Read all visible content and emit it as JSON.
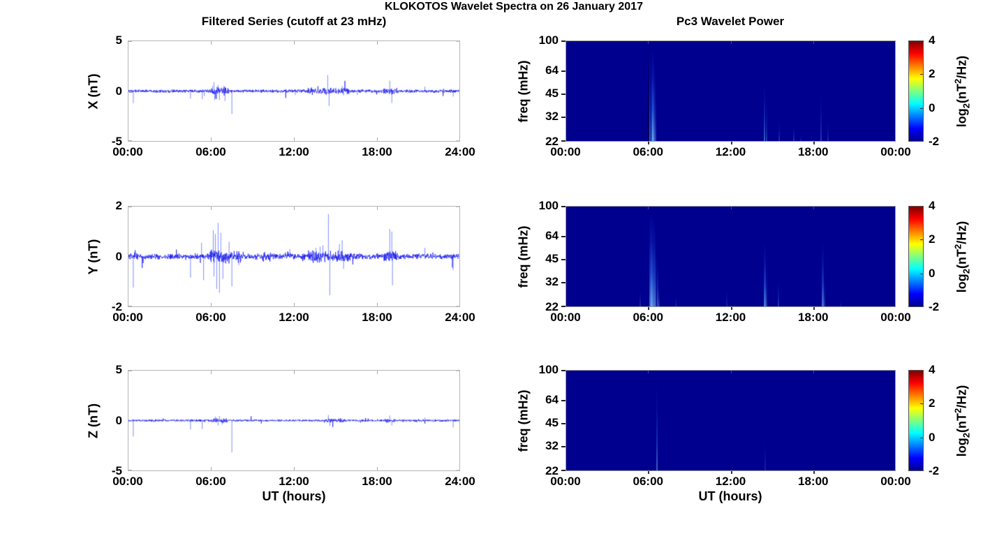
{
  "figure": {
    "title": "KLOKOTOS Wavelet Spectra on 26 January 2017",
    "left_subtitle": "Filtered Series (cutoff at 23 mHz)",
    "right_subtitle": "Pc3 Wavelet Power",
    "xlabel": "UT (hours)",
    "colors": {
      "series_line": "#0000EE",
      "spike_line": "#3344FF",
      "spectrogram_bg": "#00008F",
      "frame": "#B5B5B5",
      "text": "#000000",
      "jet_stops": [
        "#00008F",
        "#0000FF",
        "#00FFFF",
        "#FFFF00",
        "#FF0000",
        "#800000"
      ],
      "jet_positions": [
        0,
        0.125,
        0.375,
        0.625,
        0.875,
        1
      ]
    }
  },
  "chart_data": [
    {
      "id": "x-series",
      "type": "line",
      "ylabel": "X (nT)",
      "ylim": [
        -5,
        5
      ],
      "yticks": [
        5,
        0,
        -5
      ],
      "xlim_hours": [
        0,
        24
      ],
      "xtick_hours": [
        0,
        6,
        12,
        18,
        24
      ],
      "xtick_labels": [
        "00:00",
        "06:00",
        "12:00",
        "18:00",
        "24:00"
      ],
      "noise_amp": 0.1,
      "noise_bursts": [
        {
          "t0": 6.0,
          "t1": 7.3,
          "amp": 0.16
        },
        {
          "t0": 13.0,
          "t1": 16.0,
          "amp": 0.1
        },
        {
          "t0": 18.5,
          "t1": 19.5,
          "amp": 0.1
        }
      ],
      "spikes": [
        {
          "t": 0.35,
          "v": -1.2
        },
        {
          "t": 4.5,
          "v": -0.75
        },
        {
          "t": 5.35,
          "v": -0.8
        },
        {
          "t": 5.5,
          "v": -0.5
        },
        {
          "t": 6.1,
          "v": 0.5
        },
        {
          "t": 6.2,
          "v": 0.9
        },
        {
          "t": 6.25,
          "v": -0.9
        },
        {
          "t": 6.4,
          "v": -0.8
        },
        {
          "t": 6.5,
          "v": 0.6
        },
        {
          "t": 6.6,
          "v": -0.9
        },
        {
          "t": 6.9,
          "v": 0.5
        },
        {
          "t": 7.0,
          "v": -1.0
        },
        {
          "t": 7.5,
          "v": -2.3
        },
        {
          "t": 12.1,
          "v": -0.4
        },
        {
          "t": 14.45,
          "v": 1.6
        },
        {
          "t": 14.55,
          "v": -1.5
        },
        {
          "t": 15.5,
          "v": 0.5
        },
        {
          "t": 15.6,
          "v": -0.45
        },
        {
          "t": 16.6,
          "v": -0.4
        },
        {
          "t": 18.95,
          "v": 1.05
        },
        {
          "t": 19.1,
          "v": -1.2
        },
        {
          "t": 21.5,
          "v": 0.45
        },
        {
          "t": 23.55,
          "v": -0.55
        }
      ]
    },
    {
      "id": "y-series",
      "type": "line",
      "ylabel": "Y (nT)",
      "ylim": [
        -2,
        2
      ],
      "yticks": [
        2,
        0,
        -2
      ],
      "xlim_hours": [
        0,
        24
      ],
      "xtick_hours": [
        0,
        6,
        12,
        18,
        24
      ],
      "xtick_labels": [
        "00:00",
        "06:00",
        "12:00",
        "18:00",
        "24:00"
      ],
      "noise_amp": 0.07,
      "noise_bursts": [
        {
          "t0": 5.9,
          "t1": 8.2,
          "amp": 0.09
        },
        {
          "t0": 9.7,
          "t1": 10.3,
          "amp": 0.05
        },
        {
          "t0": 11.3,
          "t1": 11.8,
          "amp": 0.04
        },
        {
          "t0": 13.0,
          "t1": 16.2,
          "amp": 0.07
        },
        {
          "t0": 18.5,
          "t1": 19.6,
          "amp": 0.06
        }
      ],
      "spikes": [
        {
          "t": 0.35,
          "v": -1.25
        },
        {
          "t": 4.5,
          "v": -0.85
        },
        {
          "t": 5.3,
          "v": 0.55
        },
        {
          "t": 5.45,
          "v": -0.95
        },
        {
          "t": 6.15,
          "v": 1.05
        },
        {
          "t": 6.2,
          "v": -0.8
        },
        {
          "t": 6.3,
          "v": 0.9
        },
        {
          "t": 6.4,
          "v": -1.3
        },
        {
          "t": 6.5,
          "v": 1.35
        },
        {
          "t": 6.6,
          "v": -1.45
        },
        {
          "t": 6.7,
          "v": 0.95
        },
        {
          "t": 6.85,
          "v": -0.9
        },
        {
          "t": 7.3,
          "v": 0.6
        },
        {
          "t": 7.5,
          "v": -1.2
        },
        {
          "t": 8.0,
          "v": -0.35
        },
        {
          "t": 11.7,
          "v": 0.3
        },
        {
          "t": 13.6,
          "v": 0.35
        },
        {
          "t": 13.9,
          "v": 0.4
        },
        {
          "t": 14.1,
          "v": 0.45
        },
        {
          "t": 14.5,
          "v": 1.7
        },
        {
          "t": 14.6,
          "v": -1.55
        },
        {
          "t": 15.3,
          "v": 0.5
        },
        {
          "t": 15.5,
          "v": 0.65
        },
        {
          "t": 15.6,
          "v": -0.5
        },
        {
          "t": 18.95,
          "v": 1.1
        },
        {
          "t": 19.1,
          "v": 1.0
        },
        {
          "t": 19.15,
          "v": -1.15
        },
        {
          "t": 21.5,
          "v": 0.35
        },
        {
          "t": 23.55,
          "v": -0.55
        }
      ]
    },
    {
      "id": "z-series",
      "type": "line",
      "ylabel": "Z (nT)",
      "ylim": [
        -5,
        5
      ],
      "yticks": [
        5,
        0,
        -5
      ],
      "xlim_hours": [
        0,
        24
      ],
      "xtick_hours": [
        0,
        6,
        12,
        18,
        24
      ],
      "xtick_labels": [
        "00:00",
        "06:00",
        "12:00",
        "18:00",
        "24:00"
      ],
      "noise_amp": 0.07,
      "noise_bursts": [
        {
          "t0": 6.0,
          "t1": 7.2,
          "amp": 0.08
        },
        {
          "t0": 14.2,
          "t1": 15.8,
          "amp": 0.05
        },
        {
          "t0": 18.6,
          "t1": 19.4,
          "amp": 0.05
        }
      ],
      "spikes": [
        {
          "t": 0.35,
          "v": -1.6
        },
        {
          "t": 4.5,
          "v": -0.9
        },
        {
          "t": 5.35,
          "v": -0.85
        },
        {
          "t": 6.3,
          "v": 0.4
        },
        {
          "t": 6.5,
          "v": -0.5
        },
        {
          "t": 6.6,
          "v": 0.45
        },
        {
          "t": 6.8,
          "v": -0.4
        },
        {
          "t": 7.5,
          "v": -3.2
        },
        {
          "t": 14.5,
          "v": 0.55
        },
        {
          "t": 14.6,
          "v": -0.55
        },
        {
          "t": 18.95,
          "v": 0.5
        },
        {
          "t": 19.1,
          "v": -0.5
        },
        {
          "t": 21.5,
          "v": 0.3
        },
        {
          "t": 23.55,
          "v": -0.7
        }
      ]
    },
    {
      "id": "x-wavelet",
      "type": "heatmap",
      "ylabel": "freq (mHz)",
      "yticks": [
        100,
        64,
        45,
        32,
        22
      ],
      "ylim_mhz": [
        22,
        100
      ],
      "yscale": "log2",
      "xlim_hours": [
        0,
        24
      ],
      "xtick_hours": [
        0,
        6,
        12,
        18,
        24
      ],
      "xtick_labels": [
        "00:00",
        "06:00",
        "12:00",
        "18:00",
        "00:00"
      ],
      "background_value": -2,
      "colorbar": {
        "lim": [
          -2,
          4
        ],
        "ticks": [
          4,
          2,
          0,
          -2
        ],
        "label_parts": {
          "base": "log",
          "sub": "2",
          "mid": "(nT",
          "sup": "2",
          "tail": "/Hz)"
        },
        "label_plain": "log2(nT^2/Hz)"
      },
      "streaks": [
        {
          "t": 6.02,
          "fmax": 95,
          "intensity": 0.35,
          "dark": true
        },
        {
          "t": 6.1,
          "fmax": 85,
          "intensity": 0.5
        },
        {
          "t": 6.25,
          "fmax": 88,
          "intensity": 0.8
        },
        {
          "t": 6.38,
          "fmax": 78,
          "intensity": 0.6
        },
        {
          "t": 6.5,
          "fmax": 58,
          "intensity": 0.35
        },
        {
          "t": 14.45,
          "fmax": 52,
          "intensity": 0.5
        },
        {
          "t": 14.6,
          "fmax": 38,
          "intensity": 0.3
        },
        {
          "t": 15.55,
          "fmax": 30,
          "intensity": 0.25
        },
        {
          "t": 16.6,
          "fmax": 28,
          "intensity": 0.25
        },
        {
          "t": 17.1,
          "fmax": 24,
          "intensity": 0.15
        },
        {
          "t": 18.6,
          "fmax": 45,
          "intensity": 0.3
        },
        {
          "t": 19.1,
          "fmax": 30,
          "intensity": 0.2
        }
      ]
    },
    {
      "id": "y-wavelet",
      "type": "heatmap",
      "ylabel": "freq (mHz)",
      "yticks": [
        100,
        64,
        45,
        32,
        22
      ],
      "ylim_mhz": [
        22,
        100
      ],
      "yscale": "log2",
      "xlim_hours": [
        0,
        24
      ],
      "xtick_hours": [
        0,
        6,
        12,
        18,
        24
      ],
      "xtick_labels": [
        "00:00",
        "06:00",
        "12:00",
        "18:00",
        "00:00"
      ],
      "background_value": -2,
      "colorbar": {
        "lim": [
          -2,
          4
        ],
        "ticks": [
          4,
          2,
          0,
          -2
        ],
        "label_parts": {
          "base": "log",
          "sub": "2",
          "mid": "(nT",
          "sup": "2",
          "tail": "/Hz)"
        },
        "label_plain": "log2(nT^2/Hz)"
      },
      "streaks": [
        {
          "t": 5.4,
          "fmax": 28,
          "intensity": 0.25
        },
        {
          "t": 6.1,
          "fmax": 88,
          "intensity": 0.6
        },
        {
          "t": 6.2,
          "fmax": 90,
          "intensity": 0.85
        },
        {
          "t": 6.35,
          "fmax": 85,
          "intensity": 0.7
        },
        {
          "t": 6.5,
          "fmax": 70,
          "intensity": 0.5
        },
        {
          "t": 6.65,
          "fmax": 45,
          "intensity": 0.45
        },
        {
          "t": 6.8,
          "fmax": 30,
          "intensity": 0.3
        },
        {
          "t": 8.0,
          "fmax": 26,
          "intensity": 0.2
        },
        {
          "t": 11.7,
          "fmax": 28,
          "intensity": 0.2
        },
        {
          "t": 14.45,
          "fmax": 58,
          "intensity": 0.65
        },
        {
          "t": 14.6,
          "fmax": 40,
          "intensity": 0.35
        },
        {
          "t": 15.5,
          "fmax": 33,
          "intensity": 0.3
        },
        {
          "t": 18.7,
          "fmax": 57,
          "intensity": 0.6
        },
        {
          "t": 18.85,
          "fmax": 35,
          "intensity": 0.3
        },
        {
          "t": 20.0,
          "fmax": 24,
          "intensity": 0.15
        }
      ]
    },
    {
      "id": "z-wavelet",
      "type": "heatmap",
      "ylabel": "freq (mHz)",
      "yticks": [
        100,
        64,
        45,
        32,
        22
      ],
      "ylim_mhz": [
        22,
        100
      ],
      "yscale": "log2",
      "xlim_hours": [
        0,
        24
      ],
      "xtick_hours": [
        0,
        6,
        12,
        18,
        24
      ],
      "xtick_labels": [
        "00:00",
        "06:00",
        "12:00",
        "18:00",
        "00:00"
      ],
      "background_value": -2,
      "colorbar": {
        "lim": [
          -2,
          4
        ],
        "ticks": [
          4,
          2,
          0,
          -2
        ],
        "label_parts": {
          "base": "log",
          "sub": "2",
          "mid": "(nT",
          "sup": "2",
          "tail": "/Hz)"
        },
        "label_plain": "log2(nT^2/Hz)"
      },
      "streaks": [
        {
          "t": 6.6,
          "fmax": 78,
          "intensity": 0.5
        },
        {
          "t": 14.5,
          "fmax": 34,
          "intensity": 0.2
        }
      ]
    }
  ]
}
